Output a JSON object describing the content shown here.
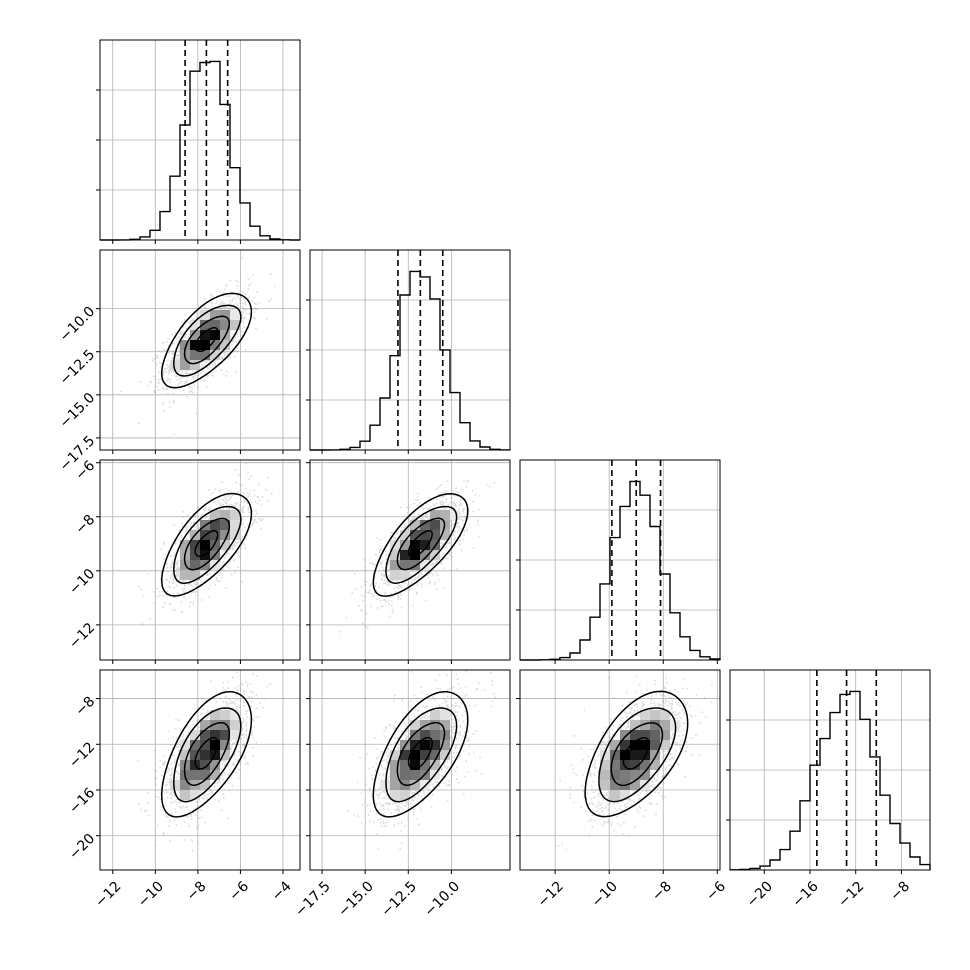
{
  "chart_data": {
    "type": "corner",
    "title": "",
    "params": [
      {
        "name": "",
        "mean": -7.6,
        "sd": 1.0,
        "lo": -8.6,
        "mid": -7.6,
        "hi": -6.6,
        "range": [
          -12.6,
          -3.2
        ],
        "ticks": [
          -12,
          -10,
          -8,
          -6,
          -4
        ],
        "tick_labels": [
          "−12",
          "−10",
          "−8",
          "−6",
          "−4"
        ]
      },
      {
        "name": "",
        "mean": -11.8,
        "sd": 1.3,
        "lo": -13.1,
        "mid": -11.8,
        "hi": -10.5,
        "range": [
          -18.2,
          -6.6
        ],
        "ticks": [
          -17.5,
          -15.0,
          -12.5,
          -10.0
        ],
        "tick_labels": [
          "−17.5",
          "−15.0",
          "−12.5",
          "−10.0"
        ]
      },
      {
        "name": "",
        "mean": -9.0,
        "sd": 0.9,
        "lo": -9.9,
        "mid": -9.0,
        "hi": -8.1,
        "range": [
          -13.3,
          -5.9
        ],
        "ticks": [
          -12,
          -10,
          -8,
          -6
        ],
        "tick_labels": [
          "−12",
          "−10",
          "−8",
          "−6"
        ]
      },
      {
        "name": "",
        "mean": -12.8,
        "sd": 2.6,
        "lo": -15.4,
        "mid": -12.8,
        "hi": -10.2,
        "range": [
          -23.0,
          -5.5
        ],
        "ticks": [
          -20,
          -16,
          -12,
          -8
        ],
        "tick_labels": [
          "−20",
          "−16",
          "−12",
          "−8"
        ]
      }
    ],
    "correlation": [
      [
        1.0,
        0.65,
        0.65,
        0.6
      ],
      [
        0.65,
        1.0,
        0.7,
        0.6
      ],
      [
        0.65,
        0.7,
        1.0,
        0.55
      ],
      [
        0.6,
        0.6,
        0.55,
        1.0
      ]
    ],
    "diagonal": "histogram with dashed quantile lines at 16%, 50%, 84%",
    "off_diagonal": "2D histogram with scatter points and contour levels",
    "contour_levels_sigma": [
      0.5,
      1.0,
      1.5,
      2.0
    ],
    "grid": true,
    "colors": {
      "points": "#9a9a9a",
      "lines": "#000000",
      "grid": "#b0b0b0"
    }
  }
}
